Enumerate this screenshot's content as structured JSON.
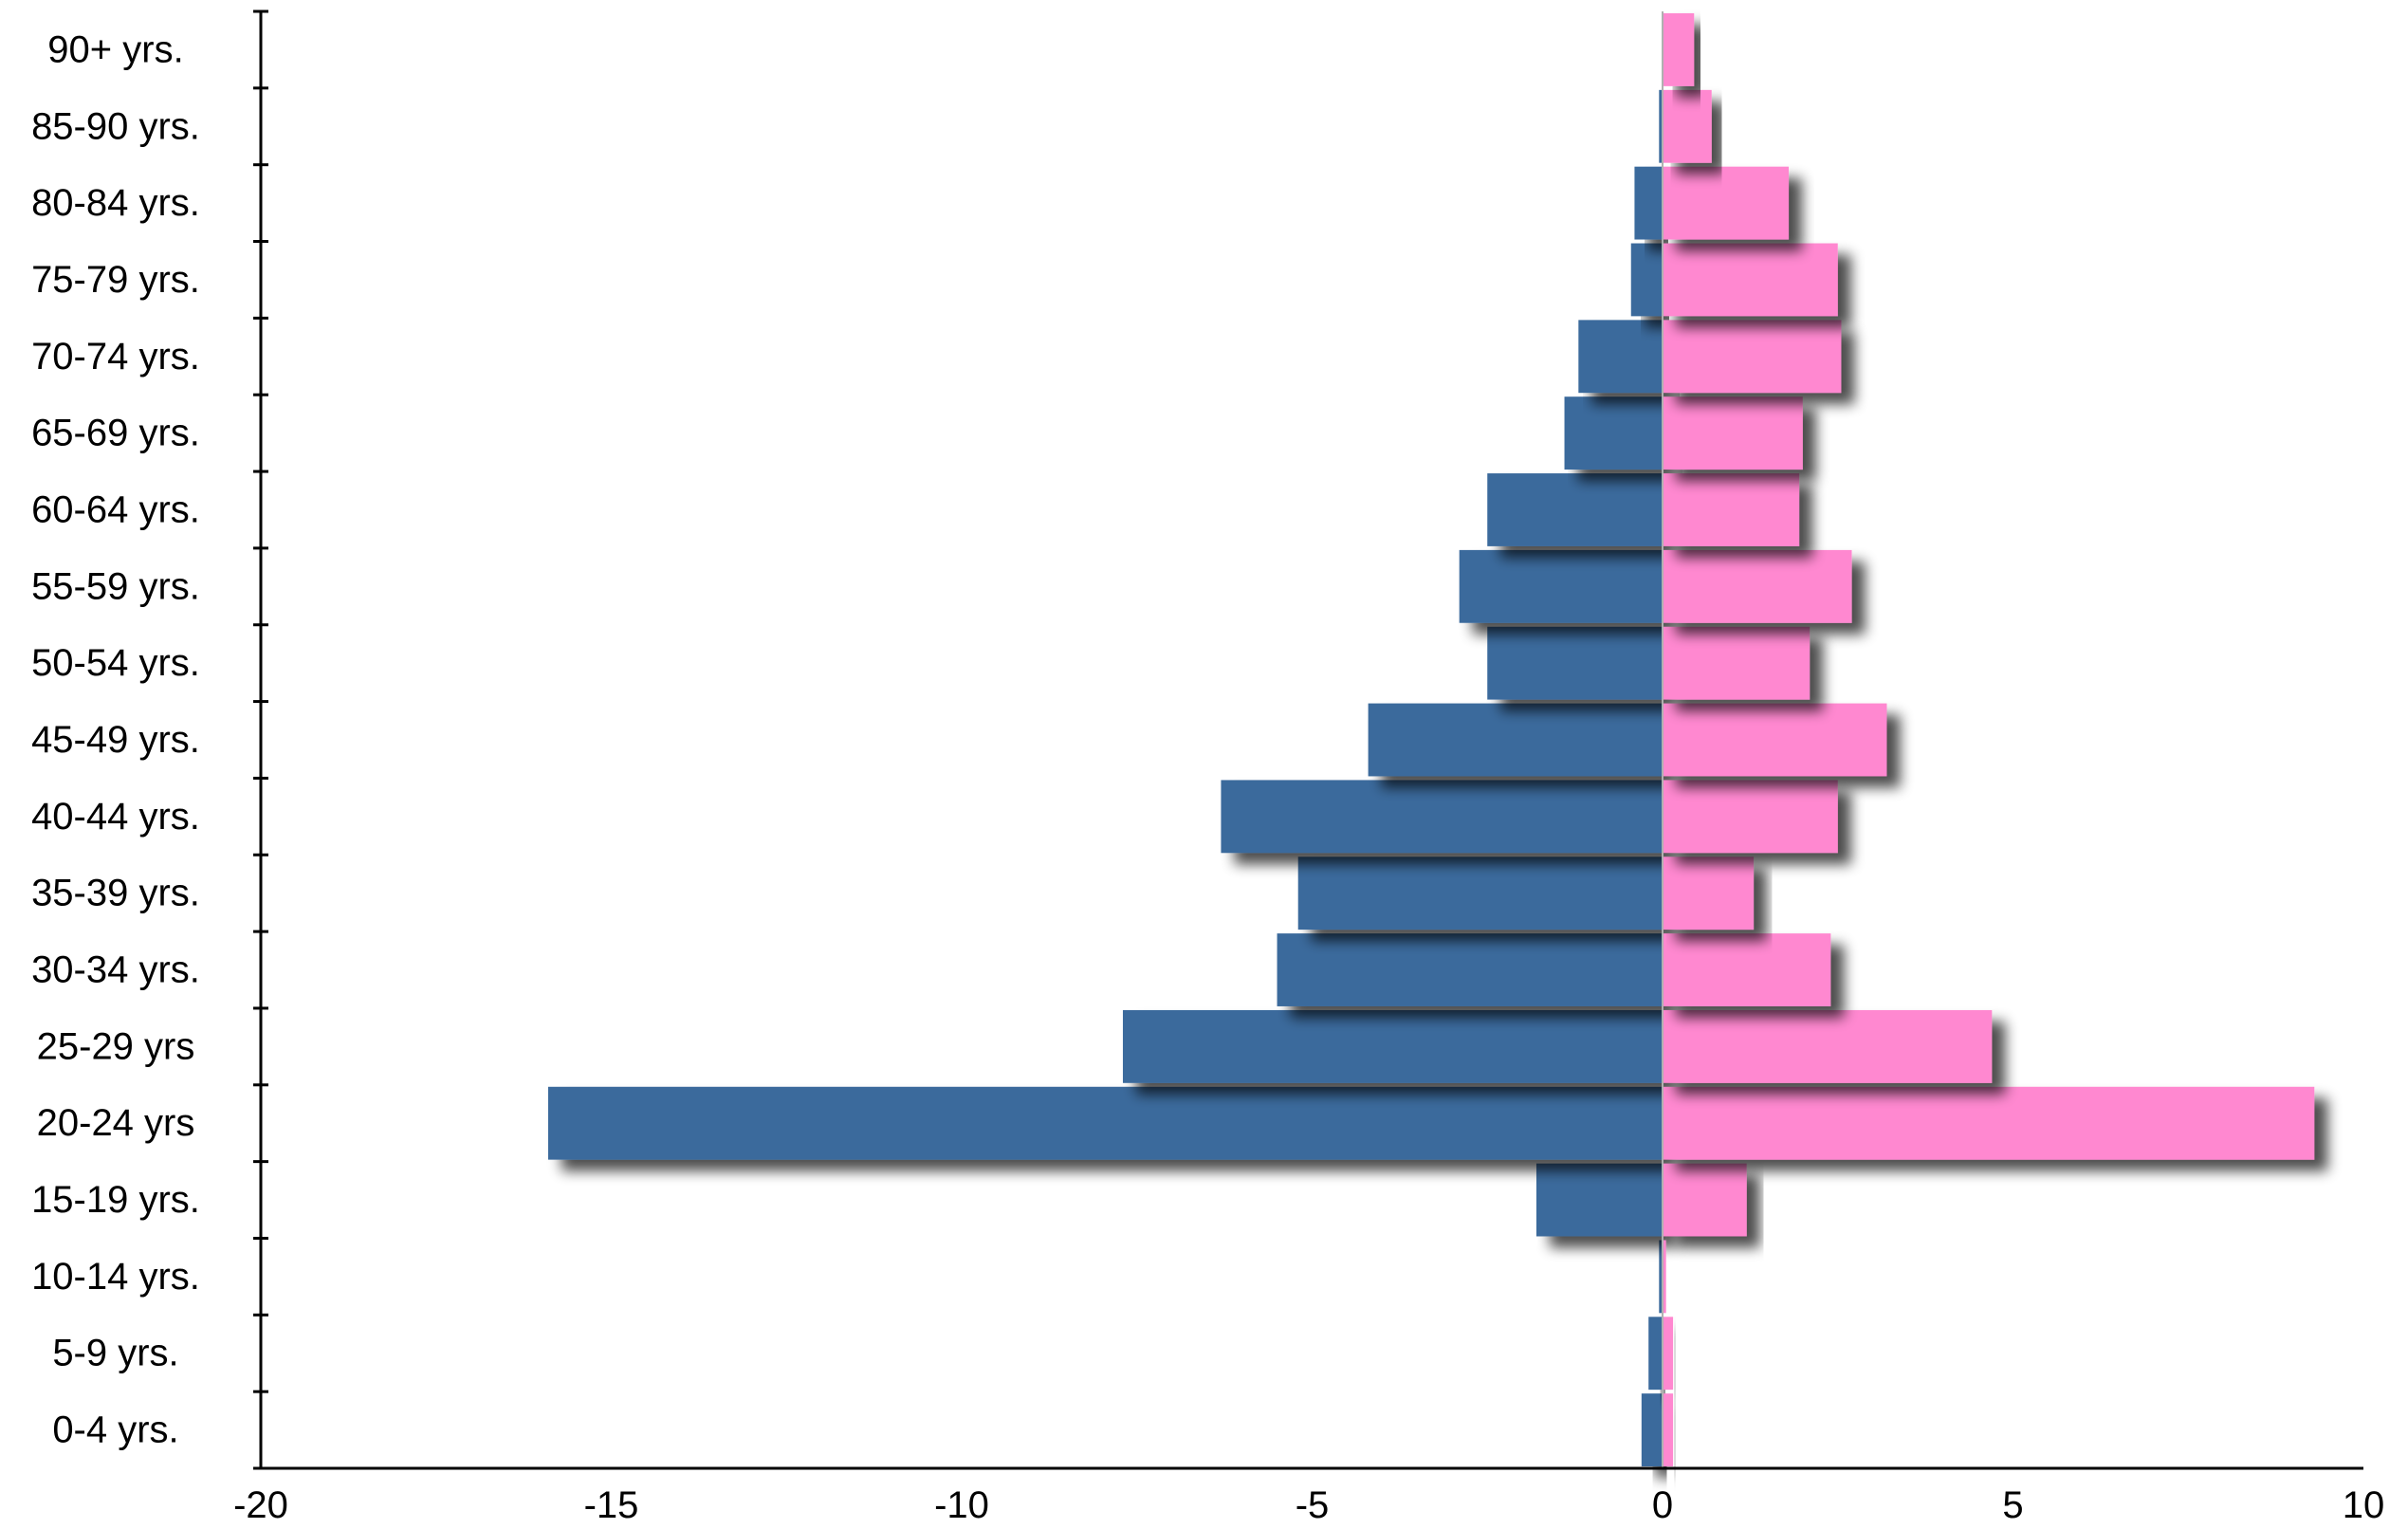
{
  "chart_data": {
    "type": "bar",
    "orientation": "horizontal",
    "title": "",
    "xlabel": "",
    "ylabel": "",
    "xlim": [
      -20,
      10
    ],
    "xticks": [
      -20,
      -15,
      -10,
      -5,
      0,
      5,
      10
    ],
    "grid": false,
    "legend": "none",
    "categories": [
      "0-4 yrs.",
      "5-9 yrs.",
      "10-14 yrs.",
      "15-19 yrs.",
      "20-24 yrs",
      "25-29 yrs",
      "30-34 yrs.",
      "35-39 yrs.",
      "40-44 yrs.",
      "45-49 yrs.",
      "50-54 yrs.",
      "55-59 yrs.",
      "60-64 yrs.",
      "65-69 yrs.",
      "70-74 yrs.",
      "75-79 yrs.",
      "80-84 yrs.",
      "85-90 yrs.",
      "90+ yrs."
    ],
    "series": [
      {
        "color": "#3b6a9c",
        "values": [
          -0.3,
          -0.2,
          -0.05,
          -1.8,
          -15.9,
          -7.7,
          -5.5,
          -5.2,
          -6.3,
          -4.2,
          -2.5,
          -2.9,
          -2.5,
          -1.4,
          -1.2,
          -0.45,
          -0.4,
          -0.05,
          0
        ]
      },
      {
        "color": "#ff88d0",
        "values": [
          0.15,
          0.15,
          0.05,
          1.2,
          9.3,
          4.7,
          2.4,
          1.3,
          2.5,
          3.2,
          2.1,
          2.7,
          1.95,
          2.0,
          2.55,
          2.5,
          1.8,
          0.7,
          0.45
        ]
      }
    ]
  }
}
